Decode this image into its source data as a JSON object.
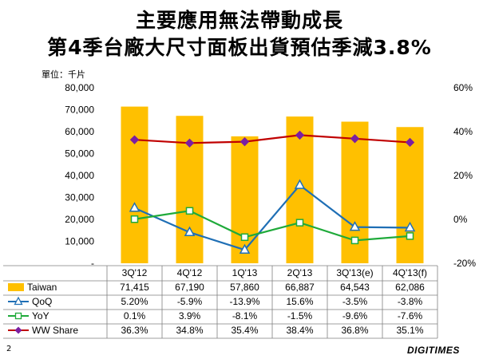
{
  "title_line1": "主要應用無法帶動成長",
  "title_line2": "第4季台廠大尺寸面板出貨預估季減3.8%",
  "unit_label": "單位：千片",
  "page_number": "2",
  "logo_text": "DIGITIMES",
  "chart_data": {
    "type": "bar+line",
    "categories": [
      "3Q'12",
      "4Q'12",
      "1Q'13",
      "2Q'13",
      "3Q'13(e)",
      "4Q'13(f)"
    ],
    "y_left": {
      "range": [
        0,
        80000
      ],
      "ticks": [
        "-",
        "10,000",
        "20,000",
        "30,000",
        "40,000",
        "50,000",
        "60,000",
        "70,000",
        "80,000"
      ],
      "tick_values": [
        0,
        10000,
        20000,
        30000,
        40000,
        50000,
        60000,
        70000,
        80000
      ]
    },
    "y_right": {
      "range": [
        -20,
        60
      ],
      "ticks": [
        "-20%",
        "0%",
        "20%",
        "40%",
        "60%"
      ],
      "tick_values": [
        -20,
        0,
        20,
        40,
        60
      ]
    },
    "series": [
      {
        "name": "Taiwan",
        "kind": "bar",
        "axis": "left",
        "color": "#FFC000",
        "values": [
          71415,
          67190,
          57860,
          66887,
          64543,
          62086
        ],
        "labels": [
          "71,415",
          "67,190",
          "57,860",
          "66,887",
          "64,543",
          "62,086"
        ]
      },
      {
        "name": "QoQ",
        "kind": "line",
        "axis": "right",
        "color": "#1F6FB5",
        "marker": "triangle",
        "values": [
          5.2,
          -5.9,
          -13.9,
          15.6,
          -3.5,
          -3.8
        ],
        "labels": [
          "5.20%",
          "-5.9%",
          "-13.9%",
          "15.6%",
          "-3.5%",
          "-3.8%"
        ]
      },
      {
        "name": "YoY",
        "kind": "line",
        "axis": "right",
        "color": "#1FAA3A",
        "marker": "square",
        "values": [
          0.1,
          3.9,
          -8.1,
          -1.5,
          -9.6,
          -7.6
        ],
        "labels": [
          "0.1%",
          "3.9%",
          "-8.1%",
          "-1.5%",
          "-9.6%",
          "-7.6%"
        ]
      },
      {
        "name": "WW Share",
        "kind": "line",
        "axis": "right",
        "color": "#C00000",
        "marker": "diamond",
        "marker_color": "#7B1FA2",
        "values": [
          36.3,
          34.8,
          35.4,
          38.4,
          36.8,
          35.1
        ],
        "labels": [
          "36.3%",
          "34.8%",
          "35.4%",
          "38.4%",
          "36.8%",
          "35.1%"
        ]
      }
    ]
  }
}
